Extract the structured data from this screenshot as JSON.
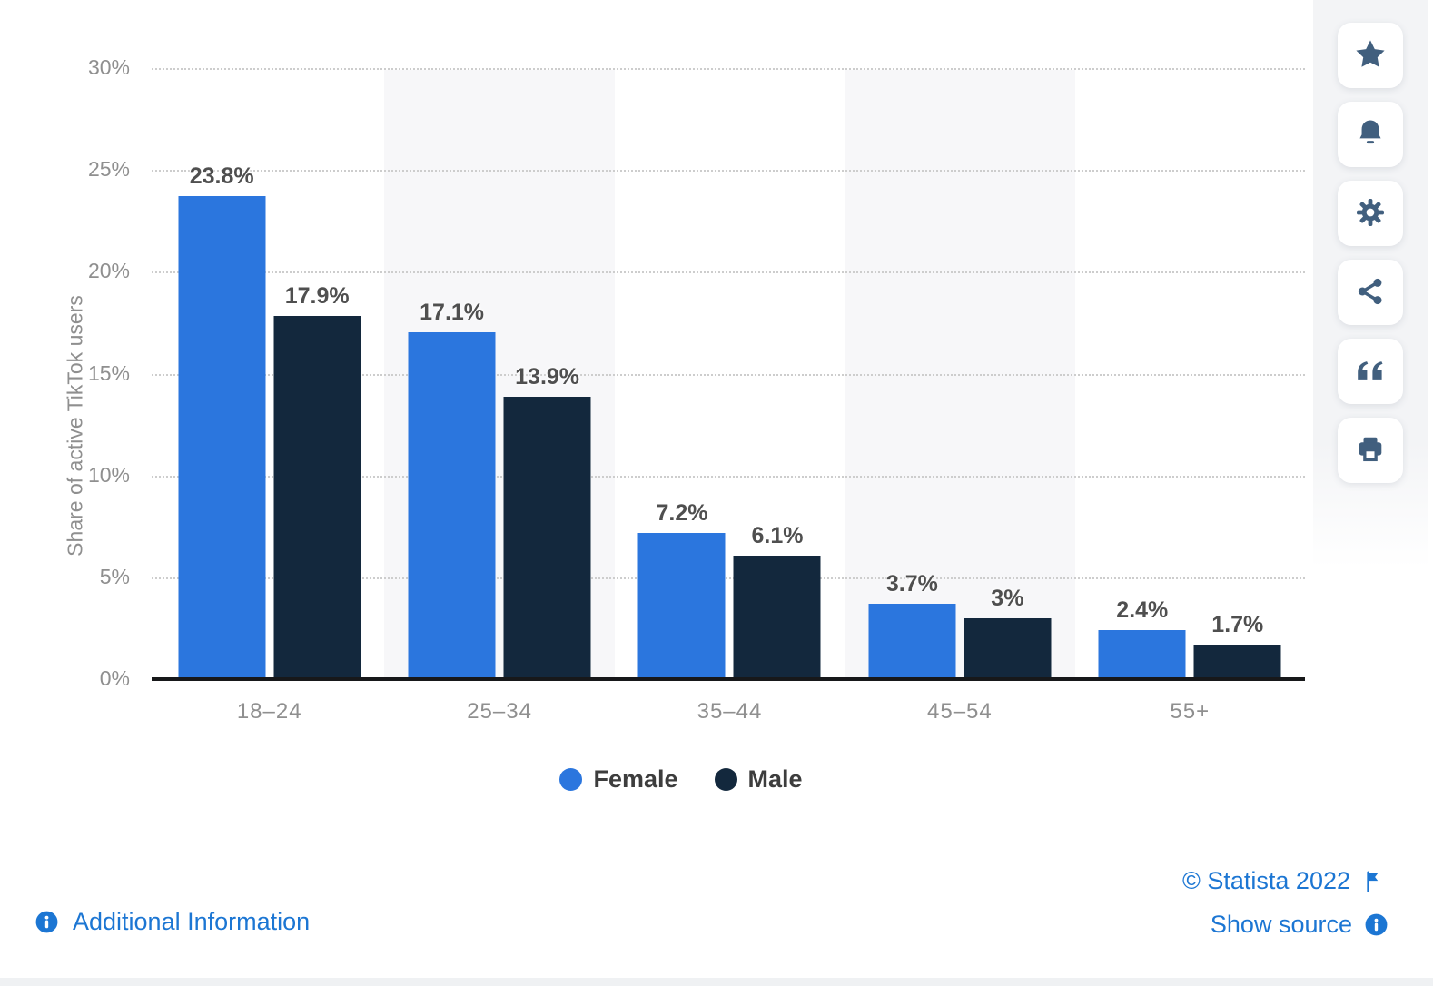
{
  "chart_data": {
    "type": "bar",
    "title": "",
    "categories": [
      "18–24",
      "25–34",
      "35–44",
      "45–54",
      "55+"
    ],
    "series": [
      {
        "name": "Female",
        "color": "#2b76de",
        "values": [
          23.8,
          17.1,
          7.2,
          3.7,
          2.4
        ],
        "value_labels": [
          "23.8%",
          "17.1%",
          "7.2%",
          "3.7%",
          "2.4%"
        ]
      },
      {
        "name": "Male",
        "color": "#13283d",
        "values": [
          17.9,
          13.9,
          6.1,
          3.0,
          1.7
        ],
        "value_labels": [
          "17.9%",
          "13.9%",
          "6.1%",
          "3%",
          "1.7%"
        ]
      }
    ],
    "xlabel": "",
    "ylabel": "Share of active TikTok users",
    "ylim": [
      0,
      30
    ],
    "yticks": [
      0,
      5,
      10,
      15,
      20,
      25,
      30
    ],
    "ytick_labels": [
      "0%",
      "5%",
      "10%",
      "15%",
      "20%",
      "25%",
      "30%"
    ],
    "grid": "horizontal-dotted",
    "column_band_shading": "alternate light gray #f7f7f9 behind 25–34 and 45–54",
    "legend_position": "bottom-center"
  },
  "legend": {
    "items": [
      {
        "label": "Female",
        "color": "#2b76de"
      },
      {
        "label": "Male",
        "color": "#13283d"
      }
    ]
  },
  "toolbar": {
    "buttons": [
      {
        "name": "favorite",
        "icon": "star-icon"
      },
      {
        "name": "alert",
        "icon": "bell-icon"
      },
      {
        "name": "settings",
        "icon": "gear-icon"
      },
      {
        "name": "share",
        "icon": "share-icon"
      },
      {
        "name": "cite",
        "icon": "quote-icon"
      },
      {
        "name": "print",
        "icon": "printer-icon"
      }
    ]
  },
  "footer": {
    "additional_information_label": "Additional Information",
    "copyright_label": "© Statista 2022",
    "show_source_label": "Show source"
  },
  "colors": {
    "female": "#2b76de",
    "male": "#13283d",
    "link_blue": "#1c76d3",
    "toolbar_icon": "#415f7e",
    "axis_text": "#8f8f8f",
    "value_label": "#4f4f4f",
    "band_gray": "#f7f7f9",
    "baseline": "#17181a"
  }
}
